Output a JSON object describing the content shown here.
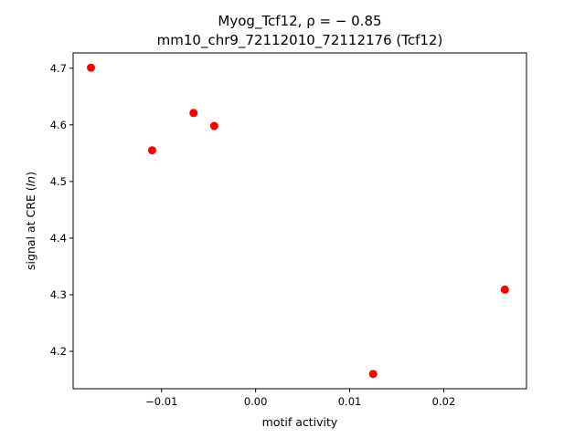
{
  "chart_data": {
    "type": "scatter",
    "title_line1": "Myog_Tcf12, ρ = − 0.85",
    "title_line2": "mm10_chr9_72112010_72112176 (Tcf12)",
    "xlabel": "motif activity",
    "ylabel_prefix": "signal at CRE (",
    "ylabel_italic": "ln",
    "ylabel_suffix": ")",
    "xlim": [
      -0.0194,
      0.0288
    ],
    "ylim": [
      4.134,
      4.727
    ],
    "x_ticks": [
      {
        "value": -0.01,
        "label": "−0.01"
      },
      {
        "value": 0.0,
        "label": "0.00"
      },
      {
        "value": 0.01,
        "label": "0.01"
      },
      {
        "value": 0.02,
        "label": "0.02"
      }
    ],
    "y_ticks": [
      {
        "value": 4.2,
        "label": "4.2"
      },
      {
        "value": 4.3,
        "label": "4.3"
      },
      {
        "value": 4.4,
        "label": "4.4"
      },
      {
        "value": 4.5,
        "label": "4.5"
      },
      {
        "value": 4.6,
        "label": "4.6"
      },
      {
        "value": 4.7,
        "label": "4.7"
      }
    ],
    "points": [
      {
        "x": -0.0175,
        "y": 4.701
      },
      {
        "x": -0.011,
        "y": 4.555
      },
      {
        "x": -0.0066,
        "y": 4.621
      },
      {
        "x": -0.0044,
        "y": 4.598
      },
      {
        "x": 0.0125,
        "y": 4.16
      },
      {
        "x": 0.0265,
        "y": 4.309
      }
    ],
    "marker_color": "#ff0000",
    "grid": false,
    "legend": "none"
  }
}
